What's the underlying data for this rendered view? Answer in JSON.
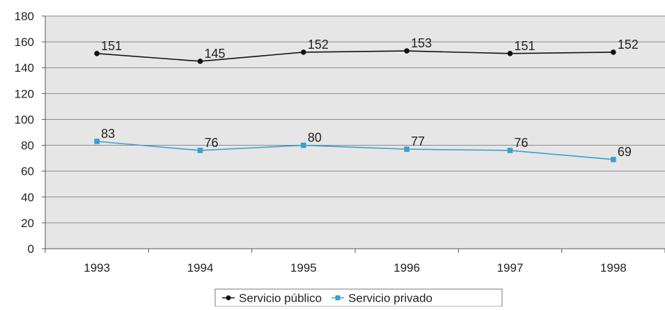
{
  "chart_data": {
    "type": "line",
    "categories": [
      "1993",
      "1994",
      "1995",
      "1996",
      "1997",
      "1998"
    ],
    "series": [
      {
        "name": "Servicio público",
        "values": [
          151,
          145,
          152,
          153,
          151,
          152
        ],
        "color": "#111111",
        "marker": "circle"
      },
      {
        "name": "Servicio privado",
        "values": [
          83,
          76,
          80,
          77,
          76,
          69
        ],
        "color": "#3a9fd0",
        "marker": "square"
      }
    ],
    "ylim": [
      0,
      180
    ],
    "yticks": [
      0,
      20,
      40,
      60,
      80,
      100,
      120,
      140,
      160,
      180
    ],
    "grid": true,
    "plot_background": "#e6e6e6",
    "legend_position": "bottom-center",
    "data_labels": true,
    "title": "",
    "xlabel": "",
    "ylabel": ""
  }
}
